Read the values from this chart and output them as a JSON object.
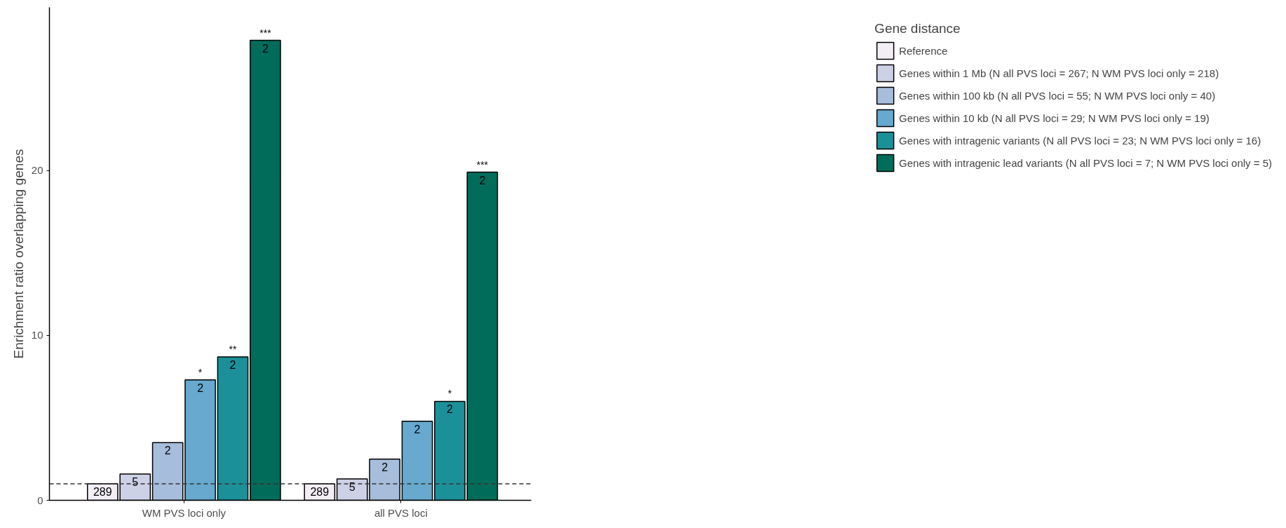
{
  "chart_data": {
    "type": "bar",
    "ylabel": "Enrichment ratio overlapping genes",
    "legend_title": "Gene distance",
    "categories": [
      "WM PVS loci only",
      "all PVS loci"
    ],
    "series": [
      {
        "name": "Reference",
        "color": "#f3eef6",
        "values": [
          1.0,
          1.0
        ]
      },
      {
        "name": "Genes within 1 Mb (N all PVS loci = 267; N WM PVS loci only = 218)",
        "color": "#cdd1e6",
        "values": [
          1.6,
          1.3
        ]
      },
      {
        "name": "Genes within 100 kb (N all PVS loci = 55; N WM PVS loci only = 40)",
        "color": "#a6bddb",
        "values": [
          3.5,
          2.5
        ]
      },
      {
        "name": "Genes within 10 kb (N all PVS loci = 29; N WM PVS loci only = 19)",
        "color": "#67a9cf",
        "values": [
          7.3,
          4.8
        ]
      },
      {
        "name": "Genes with intragenic variants (N all PVS loci = 23; N WM PVS loci only = 16)",
        "color": "#1c9099",
        "values": [
          8.7,
          6.0
        ]
      },
      {
        "name": "Genes with intragenic lead variants (N all PVS loci = 7; N WM PVS loci only = 5)",
        "color": "#016c59",
        "values": [
          27.9,
          19.9
        ]
      }
    ],
    "annotations": [
      "289",
      "5",
      "2",
      "2",
      "2",
      "2",
      "*",
      "**",
      "***",
      "289",
      "5",
      "2",
      "2",
      "2",
      "2",
      "*",
      "***"
    ],
    "ref_lines": [
      {
        "axis": "y",
        "value": 1,
        "line_style": "dashed",
        "color": "#333333"
      }
    ],
    "ylim": [
      0,
      29.9
    ],
    "yticks": [
      0,
      10,
      20
    ],
    "grid": false,
    "legend": "right"
  }
}
